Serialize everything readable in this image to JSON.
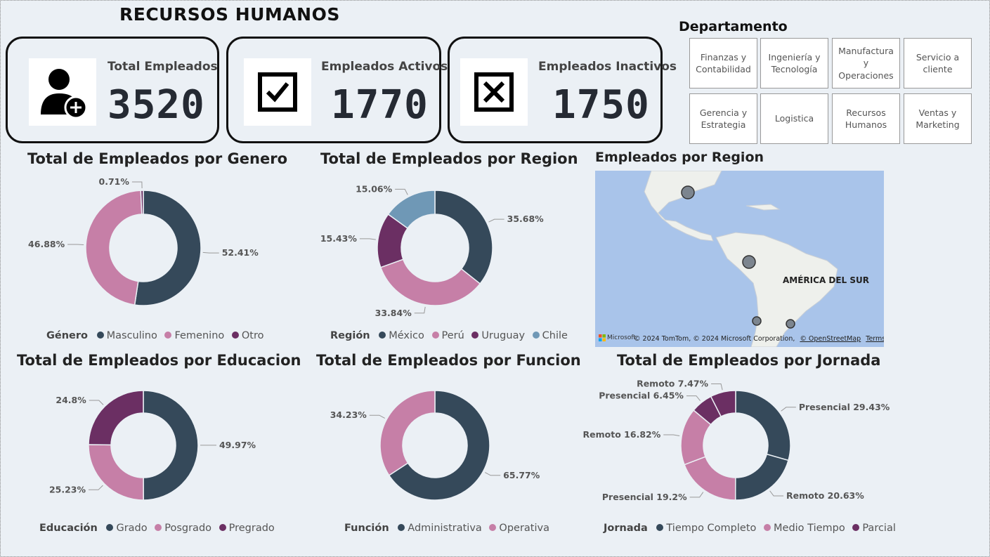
{
  "header": {
    "title": "RECURSOS HUMANOS"
  },
  "kpis": [
    {
      "label": "Total Empleados",
      "value": "3520",
      "icon": "user-add-icon"
    },
    {
      "label": "Empleados Activos",
      "value": "1770",
      "icon": "checkbox-checked-icon"
    },
    {
      "label": "Empleados Inactivos",
      "value": "1750",
      "icon": "checkbox-x-icon"
    }
  ],
  "slicer": {
    "title": "Departamento",
    "items": [
      "Finanzas y Contabilidad",
      "Ingeniería y Tecnología",
      "Manufactura y Operaciones",
      "Servicio a cliente",
      "Gerencia y Estrategia",
      "Logistica",
      "Recursos Humanos",
      "Ventas y Marketing"
    ]
  },
  "colors": {
    "dark": "#35495a",
    "pink": "#c67fa7",
    "purple": "#6b2f63",
    "blue": "#6f98b6"
  },
  "map": {
    "title": "Empleados por Region",
    "label": "AMÉRICA DEL SUR",
    "brand": "Microsoft",
    "attribution": "© 2024 TomTom, © 2024 Microsoft Corporation,",
    "osm": "© OpenStreetMap",
    "terms": "Terms"
  },
  "chart_data": [
    {
      "type": "pie",
      "title": "Total de Empleados por Genero",
      "legend_title": "Género",
      "series": [
        {
          "name": "Masculino",
          "value": 52.41,
          "label": "52.41%"
        },
        {
          "name": "Femenino",
          "value": 46.88,
          "label": "46.88%"
        },
        {
          "name": "Otro",
          "value": 0.71,
          "label": "0.71%"
        }
      ]
    },
    {
      "type": "pie",
      "title": "Total de Empleados por Region",
      "legend_title": "Región",
      "series": [
        {
          "name": "México",
          "value": 35.68,
          "label": "35.68%"
        },
        {
          "name": "Perú",
          "value": 33.84,
          "label": "33.84%"
        },
        {
          "name": "Uruguay",
          "value": 15.43,
          "label": "15.43%"
        },
        {
          "name": "Chile",
          "value": 15.06,
          "label": "15.06%"
        }
      ]
    },
    {
      "type": "pie",
      "title": "Total de Empleados por Educacion",
      "legend_title": "Educación",
      "series": [
        {
          "name": "Grado",
          "value": 49.97,
          "label": "49.97%"
        },
        {
          "name": "Posgrado",
          "value": 25.23,
          "label": "25.23%"
        },
        {
          "name": "Pregrado",
          "value": 24.8,
          "label": "24.8%"
        }
      ]
    },
    {
      "type": "pie",
      "title": "Total de Empleados por Funcion",
      "legend_title": "Función",
      "series": [
        {
          "name": "Administrativa",
          "value": 65.77,
          "label": "65.77%"
        },
        {
          "name": "Operativa",
          "value": 34.23,
          "label": "34.23%"
        }
      ]
    },
    {
      "type": "pie",
      "title": "Total de Empleados por Jornada",
      "legend_title": "Jornada",
      "legend": [
        "Tiempo Completo",
        "Medio Tiempo",
        "Parcial"
      ],
      "series": [
        {
          "group": "Tiempo Completo",
          "value": 29.43,
          "label": "Presencial 29.43%"
        },
        {
          "group": "Tiempo Completo",
          "value": 20.63,
          "label": "Remoto 20.63%"
        },
        {
          "group": "Medio Tiempo",
          "value": 19.2,
          "label": "Presencial 19.2%"
        },
        {
          "group": "Medio Tiempo",
          "value": 16.82,
          "label": "Remoto 16.82%"
        },
        {
          "group": "Parcial",
          "value": 6.45,
          "label": "Presencial 6.45%"
        },
        {
          "group": "Parcial",
          "value": 7.47,
          "label": "Remoto 7.47%"
        }
      ]
    }
  ]
}
